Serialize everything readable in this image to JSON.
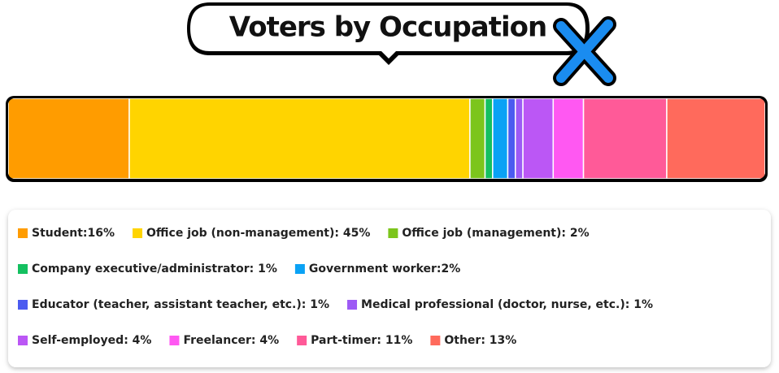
{
  "chart_data": {
    "type": "stacked-bar",
    "orientation": "horizontal",
    "title": "Voters by Occupation",
    "categories": [
      null
    ],
    "series": [
      {
        "name": "Student:16%",
        "color": "#ff9c00",
        "values": [
          16
        ]
      },
      {
        "name": "Office job (non-management): 45%",
        "color": "#ffd400",
        "values": [
          45
        ]
      },
      {
        "name": "Office job (management): 2%",
        "color": "#7cc51c",
        "values": [
          2
        ]
      },
      {
        "name": "Company executive/administrator: 1%",
        "color": "#14c060",
        "values": [
          1
        ]
      },
      {
        "name": "Government worker:2%",
        "color": "#0aa2f5",
        "values": [
          2
        ]
      },
      {
        "name": "Educator (teacher, assistant teacher, etc.): 1%",
        "color": "#4b5bf0",
        "values": [
          1
        ]
      },
      {
        "name": "Medical professional (doctor, nurse, etc.): 1%",
        "color": "#9d5af5",
        "values": [
          1
        ]
      },
      {
        "name": "Self-employed: 4%",
        "color": "#bb57f5",
        "values": [
          4
        ]
      },
      {
        "name": "Freelancer: 4%",
        "color": "#ff58f2",
        "values": [
          4
        ]
      },
      {
        "name": "Part-timer: 11%",
        "color": "#ff5a98",
        "values": [
          11
        ]
      },
      {
        "name": "Other: 13%",
        "color": "#ff6a5c",
        "values": [
          13
        ]
      }
    ]
  }
}
